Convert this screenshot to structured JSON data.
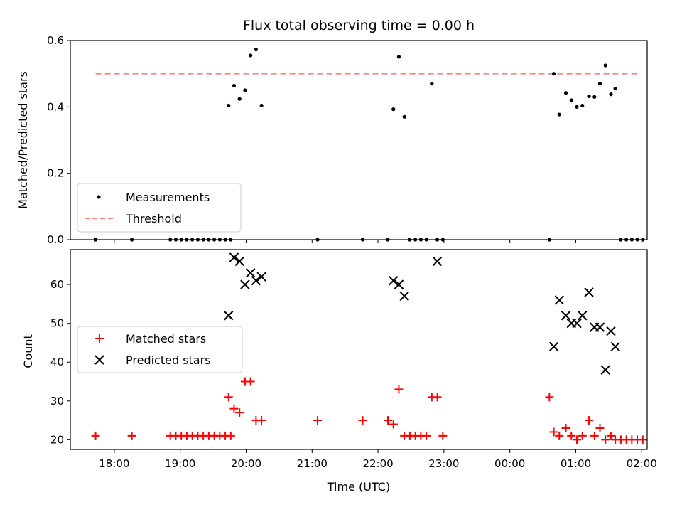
{
  "chart_data": [
    {
      "type": "scatter",
      "title": "Flux total observing time = 0.00 h",
      "xlabel": "",
      "ylabel": "Matched/Predicted stars",
      "xlim": [
        "17:20",
        "26:05"
      ],
      "ylim": [
        0,
        0.6
      ],
      "yticks": [
        "0.0",
        "0.2",
        "0.4",
        "0.6"
      ],
      "legend_placement": "lower-left",
      "series": [
        {
          "name": "Measurements",
          "marker": "dot",
          "color": "#000000",
          "x": [
            "17:43",
            "18:16",
            "18:51",
            "18:56",
            "19:01",
            "19:06",
            "19:11",
            "19:16",
            "19:21",
            "19:26",
            "19:31",
            "19:36",
            "19:41",
            "19:46",
            "19:44",
            "19:49",
            "19:54",
            "19:59",
            "20:04",
            "20:09",
            "20:14",
            "21:05",
            "21:46",
            "22:09",
            "22:14",
            "22:19",
            "22:24",
            "22:29",
            "22:34",
            "22:39",
            "22:44",
            "22:49",
            "22:54",
            "22:59",
            "00:36",
            "00:40",
            "00:45",
            "00:51",
            "00:56",
            "01:01",
            "01:06",
            "01:12",
            "01:17",
            "01:22",
            "01:27",
            "01:32",
            "01:36",
            "01:41",
            "01:46",
            "01:51",
            "01:56",
            "02:01"
          ],
          "y": [
            0,
            0,
            0,
            0,
            0,
            0,
            0,
            0,
            0,
            0,
            0,
            0,
            0,
            0,
            0.404,
            0.464,
            0.424,
            0.45,
            0.555,
            0.573,
            0.404,
            0,
            0,
            0,
            0.393,
            0.551,
            0.37,
            0,
            0,
            0,
            0,
            0.47,
            0,
            0,
            0,
            0.5,
            0.377,
            0.442,
            0.42,
            0.4,
            0.404,
            0.432,
            0.43,
            0.47,
            0.525,
            0.438,
            0.455,
            0,
            0,
            0,
            0,
            0
          ]
        },
        {
          "name": "Threshold",
          "style": "dashed",
          "color": "#ff7f7f",
          "x": [
            "17:43",
            "01:59"
          ],
          "y": [
            0.5,
            0.5
          ]
        }
      ]
    },
    {
      "type": "scatter",
      "title": "",
      "xlabel": "Time (UTC)",
      "ylabel": "Count",
      "xlim": [
        "17:20",
        "26:05"
      ],
      "ylim": [
        17.5,
        69
      ],
      "yticks": [
        "20",
        "30",
        "40",
        "50",
        "60"
      ],
      "xticks": [
        "18:00",
        "19:00",
        "20:00",
        "21:00",
        "22:00",
        "23:00",
        "00:00",
        "01:00",
        "02:00"
      ],
      "legend_placement": "center-left",
      "series": [
        {
          "name": "Matched stars",
          "marker": "plus",
          "color": "#ff0000",
          "x": [
            "17:43",
            "18:16",
            "18:51",
            "18:56",
            "19:01",
            "19:06",
            "19:11",
            "19:16",
            "19:21",
            "19:26",
            "19:31",
            "19:36",
            "19:41",
            "19:46",
            "19:44",
            "19:49",
            "19:54",
            "19:59",
            "20:04",
            "20:09",
            "20:14",
            "21:05",
            "21:46",
            "22:09",
            "22:14",
            "22:19",
            "22:24",
            "22:29",
            "22:34",
            "22:39",
            "22:44",
            "22:49",
            "22:54",
            "22:59",
            "00:36",
            "00:40",
            "00:45",
            "00:51",
            "00:56",
            "01:01",
            "01:06",
            "01:12",
            "01:17",
            "01:22",
            "01:27",
            "01:32",
            "01:36",
            "01:41",
            "01:46",
            "01:51",
            "01:56",
            "02:01"
          ],
          "y": [
            21,
            21,
            21,
            21,
            21,
            21,
            21,
            21,
            21,
            21,
            21,
            21,
            21,
            21,
            31,
            28,
            27,
            35,
            35,
            25,
            25,
            25,
            25,
            25,
            24,
            33,
            21,
            21,
            21,
            21,
            21,
            31,
            31,
            21,
            31,
            22,
            21,
            23,
            21,
            20,
            21,
            25,
            21,
            23,
            20,
            21,
            20,
            20,
            20,
            20,
            20,
            20
          ]
        },
        {
          "name": "Predicted stars",
          "marker": "x",
          "color": "#000000",
          "x": [
            "19:44",
            "19:49",
            "19:54",
            "19:59",
            "20:04",
            "20:09",
            "20:14",
            "22:14",
            "22:19",
            "22:24",
            "22:54",
            "00:40",
            "00:45",
            "00:51",
            "00:56",
            "01:01",
            "01:06",
            "01:12",
            "01:17",
            "01:22",
            "01:27",
            "01:32",
            "01:36"
          ],
          "y": [
            52,
            67,
            66,
            60,
            63,
            61,
            62,
            61,
            60,
            57,
            66,
            44,
            56,
            52,
            50,
            50,
            52,
            58,
            49,
            49,
            38,
            48,
            44
          ]
        }
      ]
    }
  ]
}
